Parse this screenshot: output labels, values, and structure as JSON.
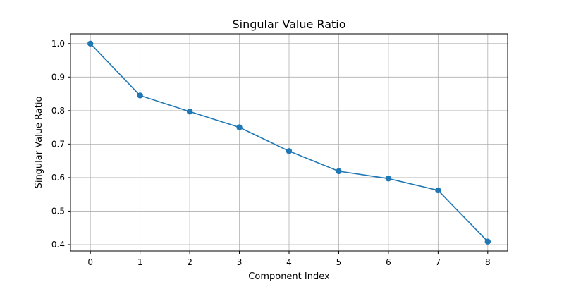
{
  "chart_data": {
    "type": "line",
    "title": "Singular Value Ratio",
    "xlabel": "Component Index",
    "ylabel": "Singular Value Ratio",
    "x": [
      0,
      1,
      2,
      3,
      4,
      5,
      6,
      7,
      8
    ],
    "series": [
      {
        "values": [
          1.0,
          0.845,
          0.797,
          0.75,
          0.679,
          0.619,
          0.597,
          0.562,
          0.409
        ],
        "color": "#1f77b4",
        "marker": "circle"
      }
    ],
    "xlim": [
      -0.4,
      8.4
    ],
    "ylim": [
      0.381,
      1.029
    ],
    "xticks": [
      "0",
      "1",
      "2",
      "3",
      "4",
      "5",
      "6",
      "7",
      "8"
    ],
    "yticks": [
      "0.4",
      "0.5",
      "0.6",
      "0.7",
      "0.8",
      "0.9",
      "1.0"
    ],
    "grid": true
  }
}
